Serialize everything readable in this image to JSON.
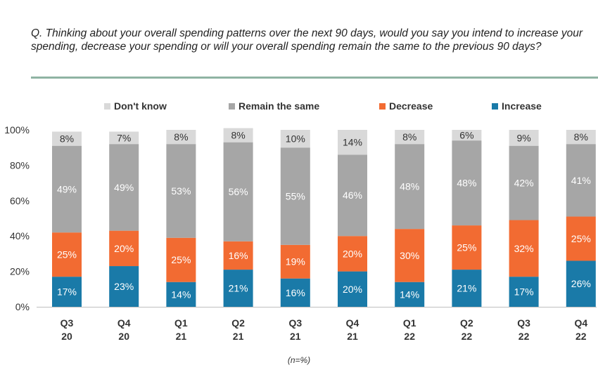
{
  "question": "Q. Thinking about your overall spending patterns over the next 90 days, would you say you intend to increase your spending, decrease your spending or will your overall spending remain the same to the previous 90 days?",
  "note": "(n=%)",
  "colors": {
    "accent_rule": "#8fb3a3"
  },
  "chart_data": {
    "type": "bar",
    "stacked": true,
    "ylim": [
      0,
      100
    ],
    "yticks": [
      "0%",
      "20%",
      "40%",
      "60%",
      "80%",
      "100%"
    ],
    "categories": [
      [
        "Q3",
        "20"
      ],
      [
        "Q4",
        "20"
      ],
      [
        "Q1",
        "21"
      ],
      [
        "Q2",
        "21"
      ],
      [
        "Q3",
        "21"
      ],
      [
        "Q4",
        "21"
      ],
      [
        "Q1",
        "22"
      ],
      [
        "Q2",
        "22"
      ],
      [
        "Q3",
        "22"
      ],
      [
        "Q4",
        "22"
      ]
    ],
    "series": [
      {
        "name": "Increase",
        "color": "#1a7aa8",
        "label_color": "#ffffff",
        "values": [
          17,
          23,
          14,
          21,
          16,
          20,
          14,
          21,
          17,
          26
        ]
      },
      {
        "name": "Decrease",
        "color": "#f26b32",
        "label_color": "#ffffff",
        "values": [
          25,
          20,
          25,
          16,
          19,
          20,
          30,
          25,
          32,
          25
        ]
      },
      {
        "name": "Remain the same",
        "color": "#a6a6a6",
        "label_color": "#ffffff",
        "values": [
          49,
          49,
          53,
          56,
          55,
          46,
          48,
          48,
          42,
          41
        ]
      },
      {
        "name": "Don't know",
        "color": "#d9d9d9",
        "label_color": "#333333",
        "values": [
          8,
          7,
          8,
          8,
          10,
          14,
          8,
          6,
          9,
          8
        ]
      }
    ],
    "legend_order": [
      "Don't know",
      "Remain the same",
      "Decrease",
      "Increase"
    ],
    "legend_position": "top",
    "value_suffix": "%",
    "grid": false
  }
}
